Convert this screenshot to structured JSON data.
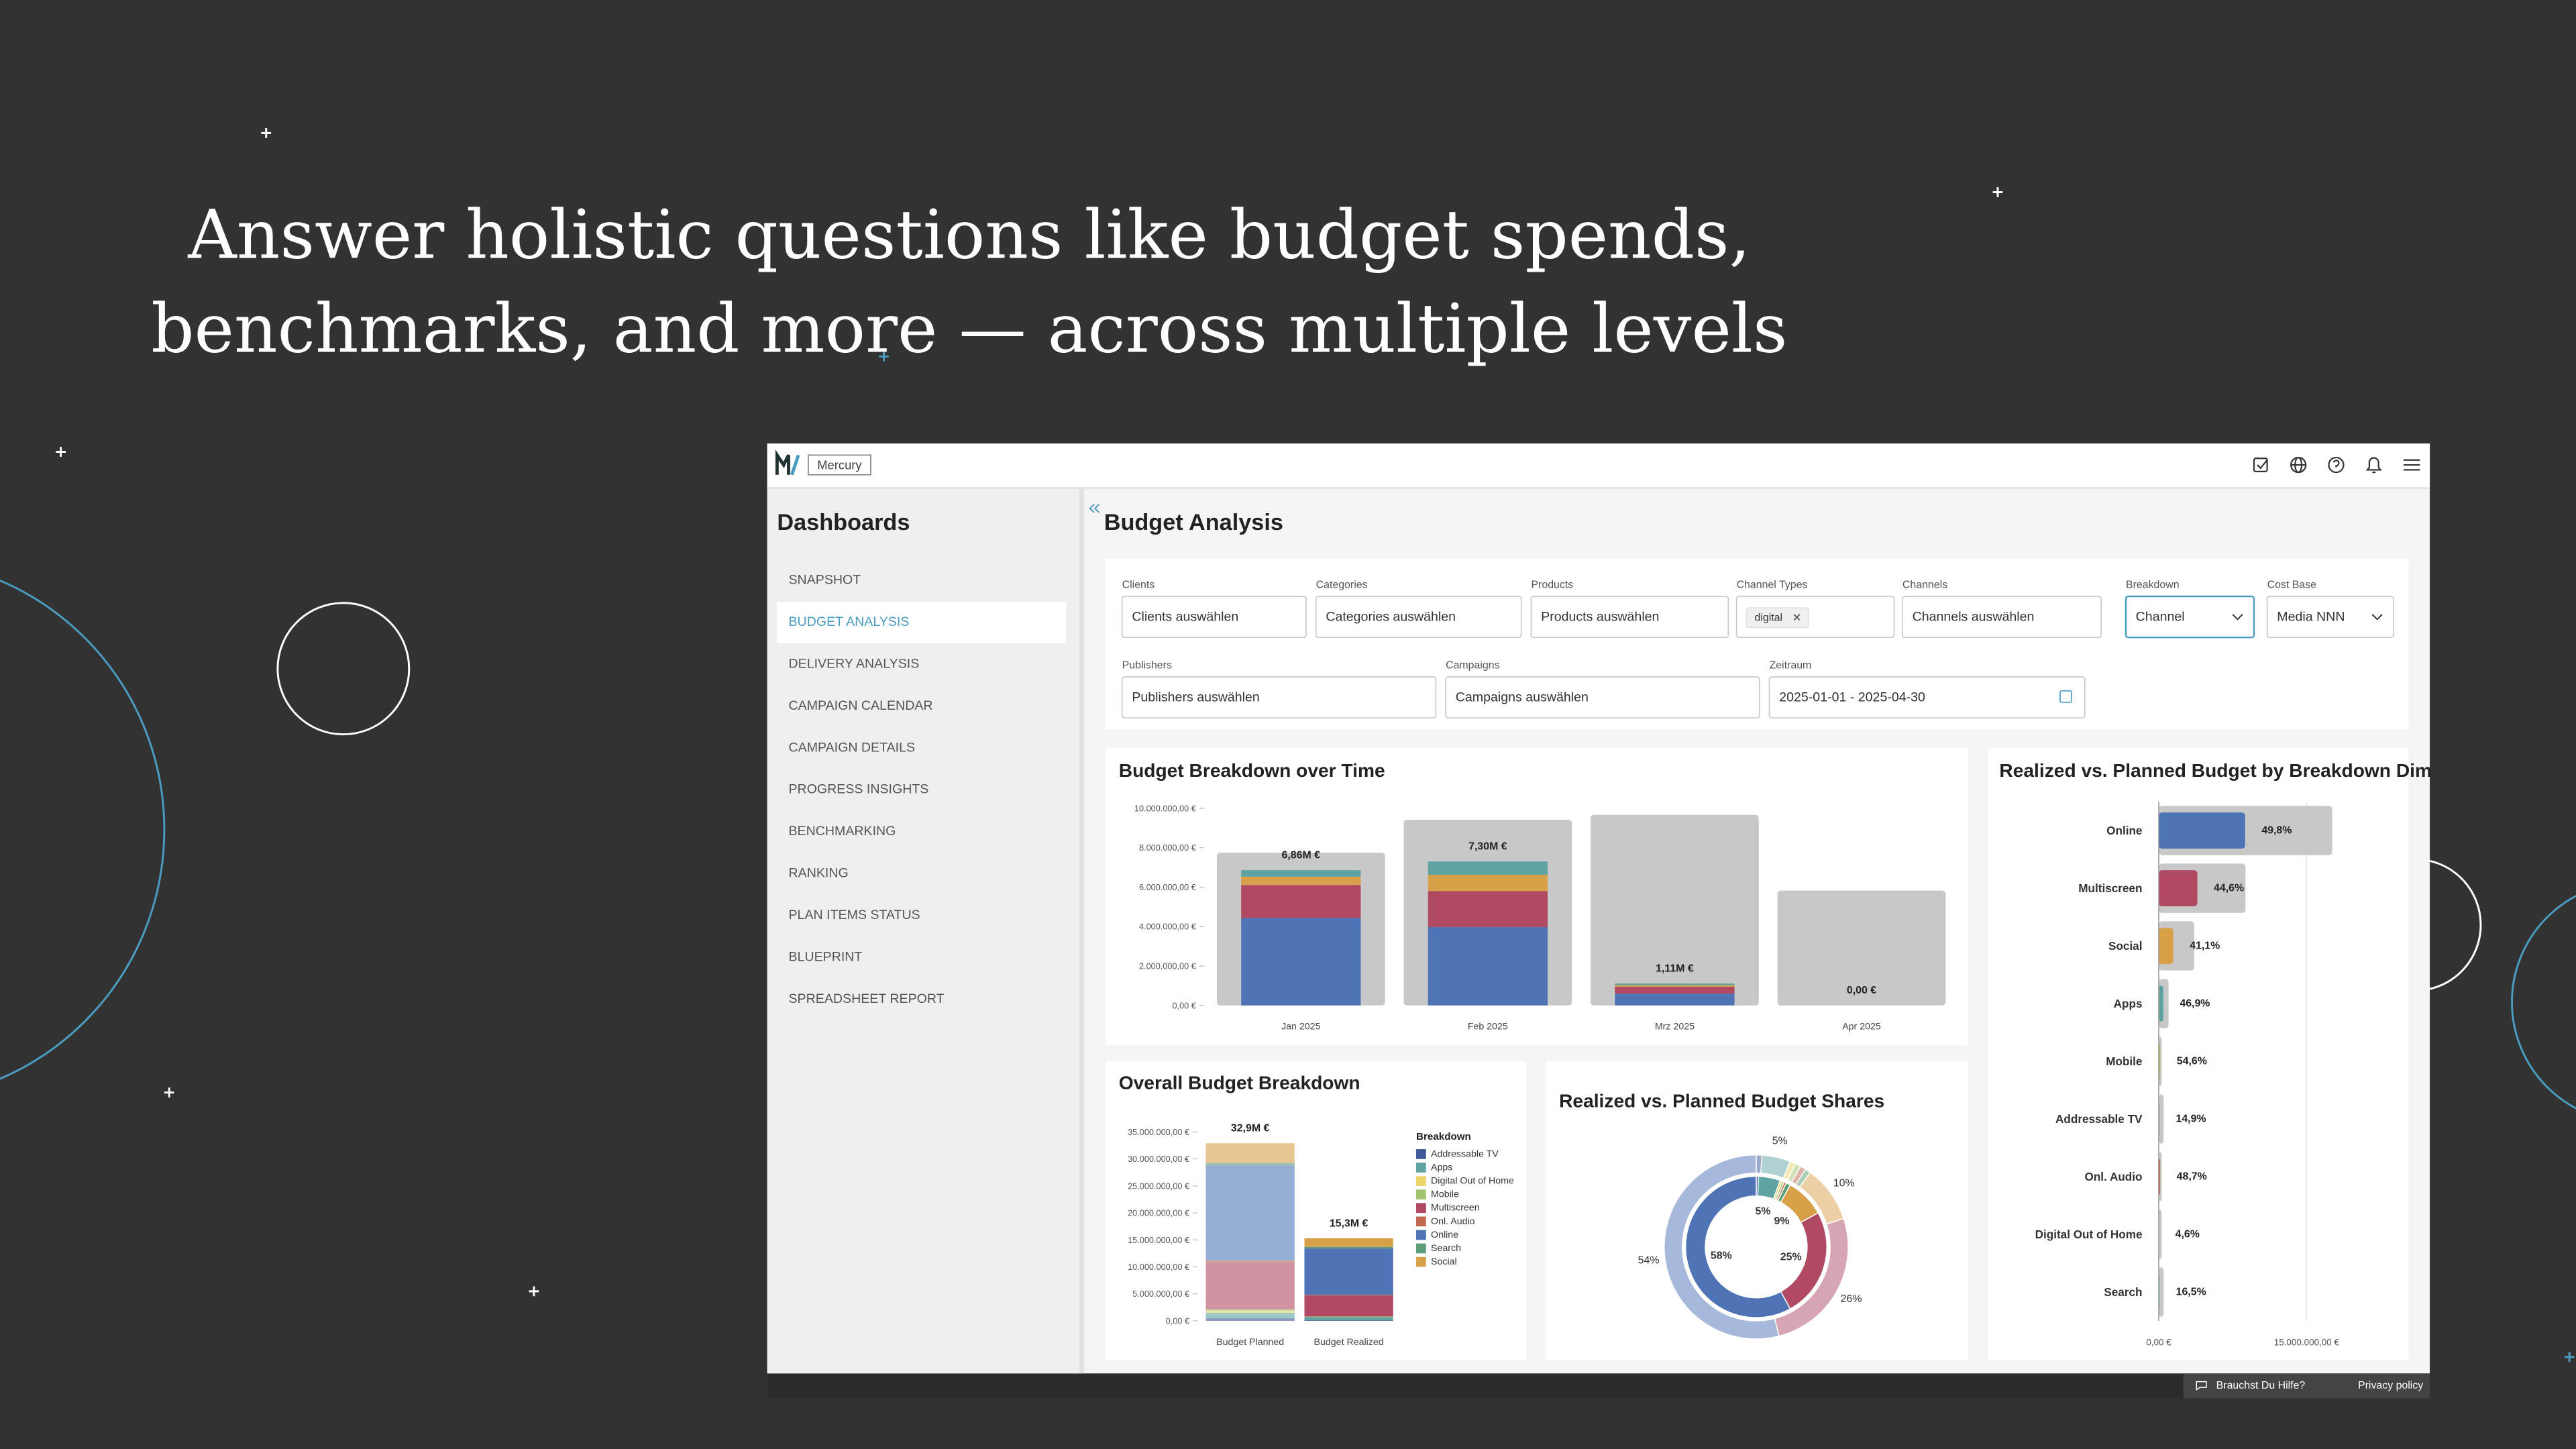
{
  "headline": [
    "Answer holistic questions like budget spends,",
    "benchmarks, and more — across multiple levels"
  ],
  "app": {
    "brand": "Mercury",
    "sidebar_title": "Dashboards",
    "nav": [
      "SNAPSHOT",
      "BUDGET ANALYSIS",
      "DELIVERY ANALYSIS",
      "CAMPAIGN CALENDAR",
      "CAMPAIGN DETAILS",
      "PROGRESS INSIGHTS",
      "BENCHMARKING",
      "RANKING",
      "PLAN ITEMS STATUS",
      "BLUEPRINT",
      "SPREADSHEET REPORT"
    ],
    "active_nav": 1,
    "page_title": "Budget Analysis",
    "filters": [
      {
        "label": "Clients",
        "value": "Clients auswählen"
      },
      {
        "label": "Categories",
        "value": "Categories auswählen"
      },
      {
        "label": "Products",
        "value": "Products auswählen"
      },
      {
        "label": "Channel Types",
        "tag": "digital"
      },
      {
        "label": "Channels",
        "value": "Channels auswählen"
      },
      {
        "label": "Breakdown",
        "value": "Channel"
      },
      {
        "label": "Cost Base",
        "value": "Media NNN"
      },
      {
        "label": "Publishers",
        "value": "Publishers auswählen"
      },
      {
        "label": "Campaigns",
        "value": "Campaigns auswählen"
      },
      {
        "label": "Zeitraum",
        "value": "2025-01-01 - 2025-04-30"
      }
    ],
    "footer": {
      "help": "Brauchst Du Hilfe?",
      "privacy": "Privacy policy"
    }
  },
  "chart_data": [
    {
      "type": "stacked-bar",
      "title": "Budget Breakdown over Time",
      "categories": [
        "Jan 2025",
        "Feb 2025",
        "Mrz 2025",
        "Apr 2025"
      ],
      "background": {
        "color": "#c8c8c8",
        "values": [
          7750000,
          9420000,
          9670000,
          5830000
        ]
      },
      "series": [
        {
          "color": "#4e74b5",
          "values": [
            4440000,
            3970000,
            600000,
            0
          ]
        },
        {
          "color": "#b04a63",
          "values": [
            1670000,
            1830000,
            350000,
            0
          ]
        },
        {
          "color": "#d9a04a",
          "values": [
            420000,
            830000,
            80000,
            0
          ]
        },
        {
          "color": "#5fa3a3",
          "values": [
            330000,
            670000,
            80000,
            0
          ]
        }
      ],
      "totals": [
        6860000,
        7300000,
        1110000,
        0
      ],
      "total_labels": [
        "6,86M €",
        "7,30M €",
        "1,11M €",
        "0,00 €"
      ],
      "ylim": [
        0,
        10000000
      ],
      "yticks": [
        {
          "value": 0,
          "label": "0,00 €"
        },
        {
          "value": 2000000,
          "label": "2.000.000,00 €"
        },
        {
          "value": 4000000,
          "label": "4.000.000,00 €"
        },
        {
          "value": 6000000,
          "label": "6.000.000,00 €"
        },
        {
          "value": 8000000,
          "label": "8.000.000,00 €"
        },
        {
          "value": 10000000,
          "label": "10.000.000,00 €"
        }
      ]
    },
    {
      "type": "hbar",
      "title": "Realized vs. Planned Budget by Breakdown Dim",
      "categories": [
        "Online",
        "Multiscreen",
        "Social",
        "Apps",
        "Mobile",
        "Addressable TV",
        "Onl. Audio",
        "Digital Out of Home",
        "Search"
      ],
      "background": {
        "color": "#c8c8c8",
        "values": [
          17600000,
          8800000,
          3600000,
          1000000,
          300000,
          500000,
          300000,
          300000,
          500000
        ]
      },
      "values": [
        8770000,
        3920000,
        1480000,
        470000,
        160000,
        70000,
        150000,
        10000,
        80000
      ],
      "colors": [
        "#4e74b5",
        "#b04a63",
        "#d9a04a",
        "#5fa3a3",
        "#a3c46c",
        "#3d5a99",
        "#c0674e",
        "#ecd36a",
        "#5c9e77"
      ],
      "ratios": [
        49.8,
        44.6,
        41.1,
        46.9,
        54.6,
        14.9,
        48.7,
        4.6,
        16.5
      ],
      "ratio_labels": [
        "49,8%",
        "44,6%",
        "41,1%",
        "46,9%",
        "54,6%",
        "14,9%",
        "48,7%",
        "4,6%",
        "16,5%"
      ],
      "xlim": [
        0,
        18000000
      ],
      "xticks": [
        {
          "value": 0,
          "label": "0,00 €"
        },
        {
          "value": 15000000,
          "label": "15.000.000,00 €"
        }
      ]
    },
    {
      "type": "stacked-bar",
      "title": "Overall Budget Breakdown",
      "categories": [
        "Budget Planned",
        "Budget Realized"
      ],
      "series": [
        {
          "name": "Addressable TV",
          "color": "#3d5a99",
          "values": [
            500000,
            100000
          ]
        },
        {
          "name": "Apps",
          "color": "#5fa3a3",
          "values": [
            1000000,
            600000
          ]
        },
        {
          "name": "Digital Out of Home",
          "color": "#ecd36a",
          "values": [
            300000,
            10000
          ]
        },
        {
          "name": "Mobile",
          "color": "#a3c46c",
          "values": [
            300000,
            100000
          ]
        },
        {
          "name": "Multiscreen",
          "color": "#b04a63",
          "values": [
            8800000,
            3900000
          ]
        },
        {
          "name": "Onl. Audio",
          "color": "#c0674e",
          "values": [
            300000,
            100000
          ]
        },
        {
          "name": "Online",
          "color": "#4e74b5",
          "values": [
            17600000,
            8600000
          ]
        },
        {
          "name": "Search",
          "color": "#5c9e77",
          "values": [
            500000,
            300000
          ]
        },
        {
          "name": "Social",
          "color": "#d9a04a",
          "values": [
            3600000,
            1600000
          ]
        }
      ],
      "bar_opacity": [
        0.6,
        1
      ],
      "totals": [
        32900000,
        15300000
      ],
      "total_labels": [
        "32,9M €",
        "15,3M €"
      ],
      "legend_title": "Breakdown",
      "legend": "right",
      "ylim": [
        0,
        35000000
      ],
      "yticks": [
        {
          "value": 0,
          "label": "0,00 €"
        },
        {
          "value": 5000000,
          "label": "5.000.000,00 €"
        },
        {
          "value": 10000000,
          "label": "10.000.000,00 €"
        },
        {
          "value": 15000000,
          "label": "15.000.000,00 €"
        },
        {
          "value": 20000000,
          "label": "20.000.000,00 €"
        },
        {
          "value": 25000000,
          "label": "25.000.000,00 €"
        },
        {
          "value": 30000000,
          "label": "30.000.000,00 €"
        },
        {
          "value": 35000000,
          "label": "35.000.000,00 €"
        }
      ]
    },
    {
      "type": "donut",
      "title": "Realized vs. Planned Budget Shares",
      "categories": [
        "Addressable TV",
        "Apps",
        "Digital Out of Home",
        "Mobile",
        "Onl. Audio",
        "Search",
        "Social",
        "Multiscreen",
        "Online"
      ],
      "colors": [
        "#3d5a99",
        "#5fa3a3",
        "#ecd36a",
        "#a3c46c",
        "#c0674e",
        "#5c9e77",
        "#d9a04a",
        "#b04a63",
        "#4e74b5"
      ],
      "series": [
        {
          "opacity": 0.5,
          "values": [
            1,
            5,
            1,
            1,
            1,
            1,
            10,
            26,
            54
          ],
          "value_labels": [
            null,
            "5%",
            null,
            null,
            null,
            null,
            "10%",
            "26%",
            "54%"
          ]
        },
        {
          "opacity": 1,
          "values": [
            0.5,
            5,
            0.5,
            0.5,
            0.5,
            1,
            9,
            25,
            58
          ],
          "value_labels": [
            null,
            "5%",
            null,
            null,
            null,
            null,
            "9%",
            "25%",
            "58%"
          ]
        }
      ]
    }
  ]
}
